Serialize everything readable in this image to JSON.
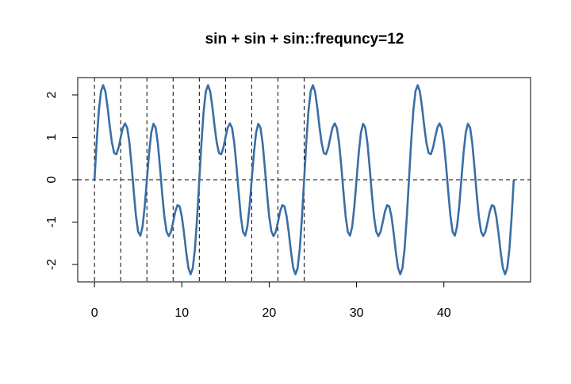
{
  "chart_data": {
    "type": "line",
    "title": "sin + sin + sin::frequncy=12",
    "x": [
      0,
      0.25,
      0.5,
      0.75,
      1,
      1.25,
      1.5,
      1.75,
      2,
      2.25,
      2.5,
      2.75,
      3,
      3.25,
      3.5,
      3.75,
      4,
      4.25,
      4.5,
      4.75,
      5,
      5.25,
      5.5,
      5.75,
      6,
      6.25,
      6.5,
      6.75,
      7,
      7.25,
      7.5,
      7.75,
      8,
      8.25,
      8.5,
      8.75,
      9,
      9.25,
      9.5,
      9.75,
      10,
      10.25,
      10.5,
      10.75,
      11,
      11.25,
      11.5,
      11.75,
      12,
      12.25,
      12.5,
      12.75,
      13,
      13.25,
      13.5,
      13.75,
      14,
      14.25,
      14.5,
      14.75,
      15,
      15.25,
      15.5,
      15.75,
      16,
      16.25,
      16.5,
      16.75,
      17,
      17.25,
      17.5,
      17.75,
      18,
      18.25,
      18.5,
      18.75,
      19,
      19.25,
      19.5,
      19.75,
      20,
      20.25,
      20.5,
      20.75,
      21,
      21.25,
      21.5,
      21.75,
      22,
      22.25,
      22.5,
      22.75,
      23,
      23.25,
      23.5,
      23.75,
      24,
      24.25,
      24.5,
      24.75,
      25,
      25.25,
      25.5,
      25.75,
      26,
      26.25,
      26.5,
      26.75,
      27,
      27.25,
      27.5,
      27.75,
      28,
      28.25,
      28.5,
      28.75,
      29,
      29.25,
      29.5,
      29.75,
      30,
      30.25,
      30.5,
      30.75,
      31,
      31.25,
      31.5,
      31.75,
      32,
      32.25,
      32.5,
      32.75,
      33,
      33.25,
      33.5,
      33.75,
      34,
      34.25,
      34.5,
      34.75,
      35,
      35.25,
      35.5,
      35.75,
      36,
      36.25,
      36.5,
      36.75,
      37,
      37.25,
      37.5,
      37.75,
      38,
      38.25,
      38.5,
      38.75,
      39,
      39.25,
      39.5,
      39.75,
      40,
      40.25,
      40.5,
      40.75,
      41,
      41.25,
      41.5,
      41.75,
      42,
      42.25,
      42.5,
      42.75,
      43,
      43.25,
      43.5,
      43.75,
      44,
      44.25,
      44.5,
      44.75,
      45,
      45.25,
      45.5,
      45.75,
      46,
      46.25,
      46.5,
      46.75,
      47,
      47.25,
      47.5,
      47.75,
      48
    ],
    "series": [
      {
        "color": "#3a6ea5",
        "values": [
          0,
          0.89,
          1.63,
          2.09,
          2.23,
          2.08,
          1.71,
          1.26,
          0.87,
          0.63,
          0.6,
          0.75,
          1,
          1.23,
          1.33,
          1.22,
          0.87,
          0.33,
          -0.29,
          -0.86,
          -1.23,
          -1.32,
          -1.11,
          -0.63,
          0,
          0.63,
          1.11,
          1.32,
          1.23,
          0.86,
          0.29,
          -0.33,
          -0.87,
          -1.22,
          -1.33,
          -1.23,
          -1,
          -0.75,
          -0.6,
          -0.63,
          -0.87,
          -1.26,
          -1.71,
          -2.08,
          -2.23,
          -2.09,
          -1.63,
          -0.89,
          0,
          0.89,
          1.63,
          2.09,
          2.23,
          2.08,
          1.71,
          1.26,
          0.87,
          0.63,
          0.6,
          0.75,
          1,
          1.23,
          1.33,
          1.22,
          0.87,
          0.33,
          -0.29,
          -0.86,
          -1.23,
          -1.32,
          -1.11,
          -0.63,
          0,
          0.63,
          1.11,
          1.32,
          1.23,
          0.86,
          0.29,
          -0.33,
          -0.87,
          -1.22,
          -1.33,
          -1.23,
          -1,
          -0.75,
          -0.6,
          -0.63,
          -0.87,
          -1.26,
          -1.71,
          -2.08,
          -2.23,
          -2.09,
          -1.63,
          -0.89,
          0,
          0.89,
          1.63,
          2.09,
          2.23,
          2.08,
          1.71,
          1.26,
          0.87,
          0.63,
          0.6,
          0.75,
          1,
          1.23,
          1.33,
          1.22,
          0.87,
          0.33,
          -0.29,
          -0.86,
          -1.23,
          -1.32,
          -1.11,
          -0.63,
          0,
          0.63,
          1.11,
          1.32,
          1.23,
          0.86,
          0.29,
          -0.33,
          -0.87,
          -1.22,
          -1.33,
          -1.23,
          -1,
          -0.75,
          -0.6,
          -0.63,
          -0.87,
          -1.26,
          -1.71,
          -2.08,
          -2.23,
          -2.09,
          -1.63,
          -0.89,
          0,
          0.89,
          1.63,
          2.09,
          2.23,
          2.08,
          1.71,
          1.26,
          0.87,
          0.63,
          0.6,
          0.75,
          1,
          1.23,
          1.33,
          1.22,
          0.87,
          0.33,
          -0.29,
          -0.86,
          -1.23,
          -1.32,
          -1.11,
          -0.63,
          0,
          0.63,
          1.11,
          1.32,
          1.23,
          0.86,
          0.29,
          -0.33,
          -0.87,
          -1.22,
          -1.33,
          -1.23,
          -1,
          -0.75,
          -0.6,
          -0.63,
          -0.87,
          -1.26,
          -1.71,
          -2.08,
          -2.23,
          -2.09,
          -1.63,
          -0.89,
          0
        ]
      }
    ],
    "vlines": [
      0,
      3,
      6,
      9,
      12,
      15,
      18,
      21,
      24
    ],
    "hline": 0,
    "xlim": [
      -1.92,
      49.92
    ],
    "ylim": [
      -2.41,
      2.41
    ],
    "xticks": [
      0,
      10,
      20,
      30,
      40
    ],
    "yticks": [
      -2,
      -1,
      0,
      1,
      2
    ]
  }
}
